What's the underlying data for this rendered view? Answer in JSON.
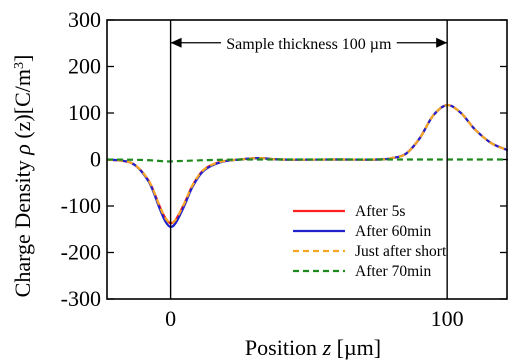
{
  "chart_data": {
    "type": "line",
    "title": "",
    "xlabel": {
      "pre": "Position ",
      "var": "z",
      "post": " [µm]"
    },
    "ylabel": {
      "pre": "Charge Density ",
      "var": "ρ",
      "post": " (z)[C/m",
      "sup": "3",
      "end": "]"
    },
    "xlim": [
      -23,
      122
    ],
    "ylim": [
      -300,
      300
    ],
    "xticks": [
      0,
      100
    ],
    "xtick_labels": [
      "0",
      "100"
    ],
    "yticks": [
      300,
      200,
      100,
      0,
      -100,
      -200,
      -300
    ],
    "ytick_labels": [
      "300",
      "200",
      "100",
      "0",
      "-100",
      "-200",
      "-300"
    ],
    "grid": false,
    "legend_position": "lower-right",
    "annotation": {
      "text": "Sample thickness 100 µm",
      "x_start": 0,
      "x_end": 100,
      "y": 251
    },
    "vertical_lines": [
      0,
      100
    ],
    "series": [
      {
        "name": "After 5s",
        "color": "#ff2020",
        "dash": "solid",
        "x": [
          -23,
          -14,
          -8,
          -4,
          -2,
          0,
          2,
          5,
          8,
          12,
          18,
          25,
          32,
          40,
          60,
          75,
          80,
          85,
          90,
          95,
          100,
          105,
          110,
          116,
          122
        ],
        "y": [
          0,
          -8,
          -45,
          -100,
          -125,
          -137,
          -128,
          -94,
          -55,
          -22,
          -5,
          0,
          3,
          0,
          0,
          0,
          3,
          12,
          45,
          95,
          117,
          100,
          65,
          35,
          20
        ]
      },
      {
        "name": "After 60min",
        "color": "#2222cc",
        "dash": "solid",
        "x": [
          -23,
          -14,
          -8,
          -4,
          -2,
          0,
          2,
          5,
          8,
          12,
          18,
          25,
          32,
          40,
          60,
          75,
          80,
          85,
          90,
          95,
          100,
          105,
          110,
          116,
          122
        ],
        "y": [
          0,
          -8,
          -47,
          -105,
          -132,
          -145,
          -135,
          -99,
          -58,
          -24,
          -6,
          0,
          3,
          0,
          0,
          0,
          3,
          12,
          45,
          95,
          117,
          100,
          65,
          35,
          20
        ]
      },
      {
        "name": "Just after short",
        "color": "#f5a623",
        "dash": "dashed",
        "x": [
          -23,
          -14,
          -8,
          -4,
          -2,
          0,
          2,
          5,
          8,
          12,
          18,
          25,
          32,
          40,
          60,
          75,
          80,
          85,
          90,
          95,
          100,
          105,
          110,
          116,
          122
        ],
        "y": [
          0,
          -8,
          -45,
          -100,
          -125,
          -137,
          -128,
          -94,
          -55,
          -22,
          -5,
          0,
          3,
          0,
          0,
          0,
          3,
          12,
          45,
          95,
          117,
          100,
          65,
          35,
          20
        ]
      },
      {
        "name": "After 70min",
        "color": "#1e8a1e",
        "dash": "dashed",
        "x": [
          -23,
          -10,
          -2,
          0,
          5,
          15,
          30,
          50,
          70,
          90,
          100,
          110,
          122
        ],
        "y": [
          0,
          -1,
          -4,
          -4,
          -3,
          -1,
          0,
          0,
          0,
          0,
          0,
          0,
          0
        ]
      }
    ]
  }
}
